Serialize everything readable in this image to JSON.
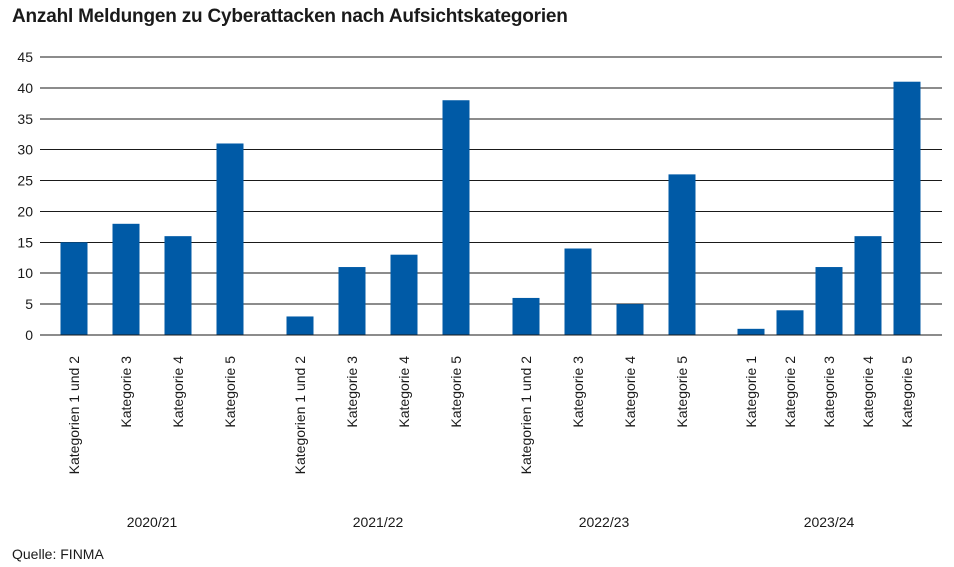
{
  "title": "Anzahl Meldungen zu Cyberattacken nach Aufsichtskategorien",
  "source": "Quelle: FINMA",
  "colors": {
    "bar": "#005aa6",
    "grid": "#1a1a1a"
  },
  "chart_data": {
    "type": "bar",
    "title": "Anzahl Meldungen zu Cyberattacken nach Aufsichtskategorien",
    "xlabel": "",
    "ylabel": "",
    "ylim": [
      0,
      45
    ],
    "yticks": [
      0,
      5,
      10,
      15,
      20,
      25,
      30,
      35,
      40,
      45
    ],
    "grid": true,
    "groups": [
      {
        "name": "2020/21",
        "categories": [
          "Kategorien 1 und 2",
          "Kategorie 3",
          "Kategorie 4",
          "Kategorie 5"
        ],
        "values": [
          15,
          18,
          16,
          31
        ]
      },
      {
        "name": "2021/22",
        "categories": [
          "Kategorien 1 und 2",
          "Kategorie 3",
          "Kategorie 4",
          "Kategorie 5"
        ],
        "values": [
          3,
          11,
          13,
          38
        ]
      },
      {
        "name": "2022/23",
        "categories": [
          "Kategorien 1 und 2",
          "Kategorie 3",
          "Kategorie 4",
          "Kategorie 5"
        ],
        "values": [
          6,
          14,
          5,
          26
        ]
      },
      {
        "name": "2023/24",
        "categories": [
          "Kategorie 1",
          "Kategorie 2",
          "Kategorie 3",
          "Kategorie 4",
          "Kategorie 5"
        ],
        "values": [
          1,
          4,
          11,
          16,
          41
        ]
      }
    ]
  }
}
